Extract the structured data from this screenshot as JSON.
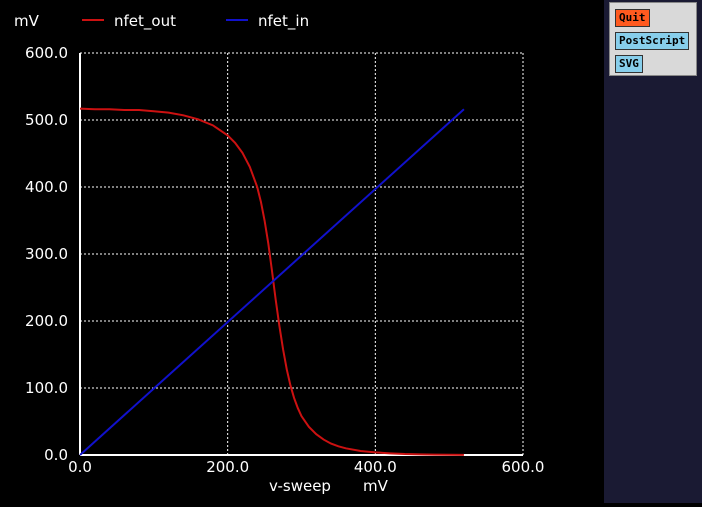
{
  "panel": {
    "buttons": [
      {
        "label": "Quit",
        "color": "#ff5a1f"
      },
      {
        "label": "PostScript",
        "color": "#87ceeb"
      },
      {
        "label": "SVG",
        "color": "#87ceeb"
      }
    ]
  },
  "chart_data": {
    "type": "line",
    "ylabel": "mV",
    "xlabel": "v-sweep",
    "xunit": "mV",
    "xlim": [
      0,
      600
    ],
    "ylim": [
      0,
      600
    ],
    "xticks": [
      "0.0",
      "200.0",
      "400.0",
      "600.0"
    ],
    "yticks": [
      "0.0",
      "100.0",
      "200.0",
      "300.0",
      "400.0",
      "500.0",
      "600.0"
    ],
    "grid": true,
    "legend_position": "top",
    "series": [
      {
        "name": "nfet_out",
        "color": "#cc1111",
        "x": [
          0,
          20,
          40,
          60,
          80,
          100,
          120,
          140,
          160,
          180,
          200,
          210,
          220,
          230,
          240,
          245,
          250,
          255,
          260,
          265,
          270,
          275,
          280,
          285,
          290,
          295,
          300,
          310,
          320,
          330,
          340,
          350,
          360,
          380,
          400,
          420,
          440,
          460,
          480,
          500,
          520
        ],
        "values": [
          517,
          516,
          516,
          515,
          515,
          513,
          511,
          507,
          501,
          492,
          477,
          466,
          451,
          430,
          400,
          378,
          350,
          316,
          275,
          232,
          193,
          158,
          128,
          104,
          85,
          70,
          58,
          42,
          31,
          23,
          17,
          13,
          10,
          6,
          4,
          2.5,
          1.5,
          1,
          0.5,
          0.3,
          0.2
        ]
      },
      {
        "name": "nfet_in",
        "color": "#1111cc",
        "x": [
          0,
          520
        ],
        "values": [
          0,
          516
        ]
      }
    ]
  }
}
